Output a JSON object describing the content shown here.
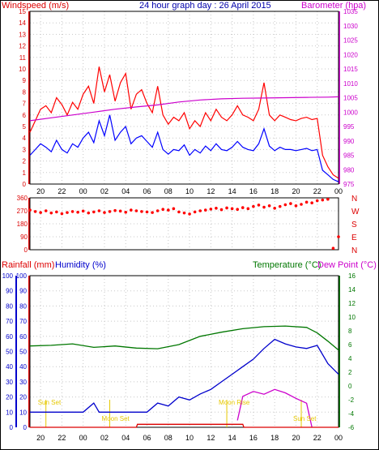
{
  "chart_data": [
    {
      "type": "line",
      "title": "24 hour graph day : 26 April 2015",
      "left_axis_label": "Windspeed (m/s)",
      "right_axis_label": "Barometer (hpa)",
      "ylim_left": [
        0,
        15
      ],
      "ylim_right": [
        975,
        1035
      ],
      "left_ticks": [
        "0",
        "1",
        "2",
        "3",
        "4",
        "5",
        "6",
        "7",
        "8",
        "9",
        "10",
        "11",
        "12",
        "13",
        "14",
        "15"
      ],
      "right_ticks": [
        "975",
        "980",
        "985",
        "990",
        "995",
        "1000",
        "1005",
        "1010",
        "1015",
        "1020",
        "1025",
        "1030",
        "1035"
      ],
      "x_ticks": [
        "20",
        "22",
        "00",
        "02",
        "04",
        "06",
        "08",
        "10",
        "12",
        "14",
        "16",
        "18",
        "20",
        "22",
        "00"
      ],
      "grid": true,
      "series": [
        {
          "color": "#ff0000",
          "x": [
            19.0,
            19.5,
            20.0,
            20.5,
            21.0,
            21.5,
            22.0,
            22.5,
            23.0,
            23.5,
            24.0,
            24.5,
            25.0,
            25.5,
            26.0,
            26.5,
            27.0,
            27.5,
            28.0,
            28.5,
            29.0,
            29.5,
            30.0,
            30.5,
            31.0,
            31.5,
            32.0,
            32.5,
            33.0,
            33.5,
            34.0,
            34.5,
            35.0,
            35.5,
            36.0,
            36.5,
            37.0,
            37.5,
            38.0,
            38.5,
            39.0,
            39.5,
            40.0,
            40.5,
            41.0,
            41.5,
            42.0,
            42.5,
            43.0,
            43.5,
            44.0,
            44.5,
            45.0,
            45.5,
            46.0,
            46.5,
            47.0,
            47.5,
            48.0
          ],
          "values": [
            4.5,
            5.5,
            6.5,
            6.8,
            6.2,
            7.5,
            6.9,
            6.0,
            7.1,
            6.5,
            7.8,
            8.5,
            7.0,
            10.2,
            8.0,
            9.5,
            7.2,
            8.8,
            9.6,
            6.5,
            7.8,
            8.2,
            7.0,
            6.2,
            8.5,
            6.0,
            5.2,
            5.8,
            5.5,
            6.2,
            4.8,
            5.5,
            5.0,
            6.2,
            5.5,
            6.5,
            5.8,
            5.5,
            6.0,
            6.8,
            6.0,
            5.8,
            5.5,
            6.5,
            8.8,
            6.0,
            5.5,
            6.0,
            5.8,
            5.6,
            5.5,
            5.7,
            5.8,
            5.6,
            5.7,
            2.5,
            1.5,
            0.8,
            0.5
          ]
        },
        {
          "color": "#0000ff",
          "x": [
            19.0,
            19.5,
            20.0,
            20.5,
            21.0,
            21.5,
            22.0,
            22.5,
            23.0,
            23.5,
            24.0,
            24.5,
            25.0,
            25.5,
            26.0,
            26.5,
            27.0,
            27.5,
            28.0,
            28.5,
            29.0,
            29.5,
            30.0,
            30.5,
            31.0,
            31.5,
            32.0,
            32.5,
            33.0,
            33.5,
            34.0,
            34.5,
            35.0,
            35.5,
            36.0,
            36.5,
            37.0,
            37.5,
            38.0,
            38.5,
            39.0,
            39.5,
            40.0,
            40.5,
            41.0,
            41.5,
            42.0,
            42.5,
            43.0,
            43.5,
            44.0,
            44.5,
            45.0,
            45.5,
            46.0,
            46.5,
            47.0,
            47.5,
            48.0
          ],
          "values": [
            2.5,
            3.0,
            3.5,
            3.2,
            2.8,
            3.8,
            3.0,
            2.7,
            3.5,
            3.2,
            4.0,
            4.5,
            3.6,
            5.5,
            4.2,
            6.0,
            3.8,
            4.5,
            5.0,
            3.5,
            4.0,
            4.2,
            3.7,
            3.2,
            4.5,
            3.0,
            2.6,
            3.0,
            2.9,
            3.4,
            2.5,
            3.0,
            2.7,
            3.3,
            2.9,
            3.5,
            3.0,
            2.9,
            3.2,
            3.7,
            3.2,
            3.0,
            2.9,
            3.5,
            4.8,
            3.3,
            2.9,
            3.2,
            3.0,
            3.0,
            2.9,
            3.0,
            3.1,
            2.9,
            3.0,
            1.2,
            0.8,
            0.4,
            0.2
          ]
        },
        {
          "color": "#cc00cc",
          "axis": "right",
          "x": [
            19.0,
            21.0,
            23.0,
            25.0,
            27.0,
            29.0,
            31.0,
            33.0,
            35.0,
            37.0,
            39.0,
            41.0,
            43.0,
            45.0,
            47.0,
            48.0
          ],
          "values": [
            997.0,
            998.0,
            999.0,
            1000.0,
            1001.0,
            1001.8,
            1002.5,
            1003.5,
            1004.2,
            1004.6,
            1004.8,
            1004.9,
            1005.0,
            1005.1,
            1005.2,
            1005.3
          ]
        }
      ]
    },
    {
      "type": "scatter",
      "right_labels": [
        "N",
        "W",
        "S",
        "E",
        "N"
      ],
      "ylim": [
        0,
        360
      ],
      "left_ticks": [
        "0",
        "90",
        "180",
        "270",
        "360"
      ],
      "series": [
        {
          "color": "#ff0000",
          "x": [
            19.0,
            19.5,
            20.0,
            20.5,
            21.0,
            21.5,
            22.0,
            22.5,
            23.0,
            23.5,
            24.0,
            24.5,
            25.0,
            25.5,
            26.0,
            26.5,
            27.0,
            27.5,
            28.0,
            28.5,
            29.0,
            29.5,
            30.0,
            30.5,
            31.0,
            31.5,
            32.0,
            32.5,
            33.0,
            33.5,
            34.0,
            34.5,
            35.0,
            35.5,
            36.0,
            36.5,
            37.0,
            37.5,
            38.0,
            38.5,
            39.0,
            39.5,
            40.0,
            40.5,
            41.0,
            41.5,
            42.0,
            42.5,
            43.0,
            43.5,
            44.0,
            44.5,
            45.0,
            45.5,
            46.0,
            46.5,
            47.0,
            47.5,
            48.0
          ],
          "values": [
            275,
            265,
            258,
            270,
            255,
            262,
            250,
            258,
            265,
            260,
            268,
            255,
            262,
            270,
            258,
            265,
            272,
            268,
            260,
            275,
            270,
            265,
            262,
            258,
            270,
            280,
            275,
            285,
            262,
            255,
            248,
            262,
            270,
            275,
            282,
            288,
            278,
            290,
            285,
            280,
            292,
            285,
            300,
            310,
            295,
            305,
            288,
            300,
            312,
            320,
            305,
            315,
            330,
            325,
            340,
            345,
            350,
            10,
            90
          ]
        }
      ]
    },
    {
      "type": "line",
      "left_axis_label": "Rainfall (mm)",
      "left_axis_label2": "Humidity (%)",
      "right_axis_label": "Temperature (°C)",
      "right_axis_label2": "Dew Point (°C)",
      "ylim_left": [
        0,
        100
      ],
      "ylim_right": [
        -6,
        16
      ],
      "left_ticks": [
        "0",
        "10",
        "20",
        "30",
        "40",
        "50",
        "60",
        "70",
        "80",
        "90",
        "100"
      ],
      "right_ticks": [
        "-6",
        "-4",
        "-2",
        "0",
        "2",
        "4",
        "6",
        "8",
        "10",
        "12",
        "14",
        "16"
      ],
      "x_ticks": [
        "20",
        "22",
        "00",
        "02",
        "04",
        "06",
        "08",
        "10",
        "12",
        "14",
        "16",
        "18",
        "20",
        "22",
        "00"
      ],
      "annotations": [
        {
          "text": "Sun Set",
          "x": 20.5
        },
        {
          "text": "Moon Set",
          "x": 26.5
        },
        {
          "text": "Moon Rise",
          "x": 37.5
        },
        {
          "text": "Sun Set",
          "x": 44.5
        }
      ],
      "series": [
        {
          "name": "Humidity",
          "color": "#0000cc",
          "x": [
            19.0,
            21.0,
            23.0,
            24.0,
            25.0,
            25.5,
            27.0,
            29.0,
            30.0,
            31.0,
            32.0,
            33.0,
            34.0,
            35.0,
            36.0,
            37.0,
            38.0,
            39.0,
            40.0,
            41.0,
            42.0,
            43.0,
            44.0,
            45.0,
            46.0,
            47.0,
            48.0
          ],
          "values": [
            10,
            10,
            10,
            10,
            16,
            10,
            10,
            10,
            10,
            16,
            14,
            20,
            18,
            22,
            25,
            30,
            35,
            40,
            45,
            52,
            58,
            55,
            53,
            52,
            54,
            42,
            35
          ]
        },
        {
          "name": "Temperature",
          "color": "#007700",
          "axis": "right",
          "x": [
            19.0,
            21.0,
            23.0,
            25.0,
            27.0,
            29.0,
            31.0,
            33.0,
            35.0,
            37.0,
            39.0,
            41.0,
            43.0,
            45.0,
            46.0,
            47.0,
            48.0
          ],
          "values": [
            5.8,
            5.9,
            6.1,
            5.6,
            5.8,
            5.5,
            5.4,
            6.0,
            7.2,
            7.8,
            8.3,
            8.6,
            8.7,
            8.5,
            7.7,
            6.5,
            5.2
          ]
        },
        {
          "name": "Dew Point",
          "color": "#cc00cc",
          "axis": "right",
          "x": [
            38.5,
            39.0,
            40.0,
            41.0,
            42.0,
            43.0,
            44.0,
            45.0,
            45.5
          ],
          "values": [
            -5.0,
            -1.5,
            -0.8,
            -1.2,
            -0.5,
            -1.0,
            -1.8,
            -2.5,
            -6.0
          ]
        },
        {
          "name": "Rainfall",
          "color": "#dd0000",
          "x": [
            19.0,
            29.0,
            29.1,
            39.0,
            39.1,
            48.0
          ],
          "values": [
            0,
            0,
            2,
            2,
            0,
            0
          ]
        }
      ]
    }
  ]
}
